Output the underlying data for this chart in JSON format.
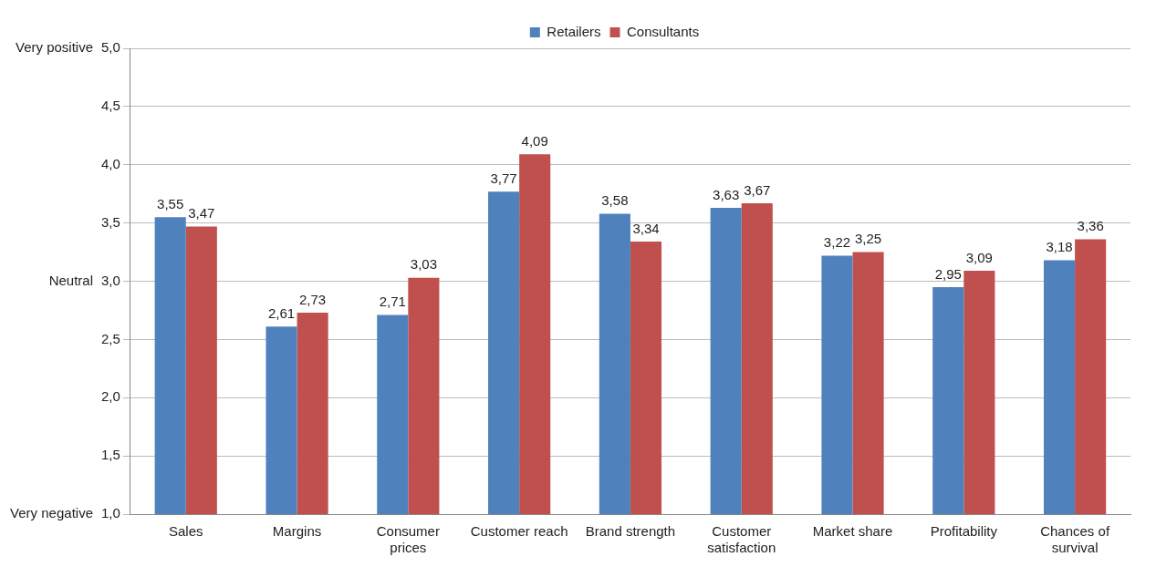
{
  "chart_data": {
    "type": "bar",
    "categories": [
      "Sales",
      "Margins",
      "Consumer\nprices",
      "Customer reach",
      "Brand strength",
      "Customer\nsatisfaction",
      "Market share",
      "Profitability",
      "Chances of\nsurvival"
    ],
    "series": [
      {
        "name": "Retailers",
        "color": "#4f81bd",
        "values": [
          3.55,
          2.61,
          2.71,
          3.77,
          3.58,
          3.63,
          3.22,
          2.95,
          3.18
        ],
        "value_labels": [
          "3,55",
          "2,61",
          "2,71",
          "3,77",
          "3,58",
          "3,63",
          "3,22",
          "2,95",
          "3,18"
        ]
      },
      {
        "name": "Consultants",
        "color": "#c0504d",
        "values": [
          3.47,
          2.73,
          3.03,
          4.09,
          3.34,
          3.67,
          3.25,
          3.09,
          3.36
        ],
        "value_labels": [
          "3,47",
          "2,73",
          "3,03",
          "4,09",
          "3,34",
          "3,67",
          "3,25",
          "3,09",
          "3,36"
        ]
      }
    ],
    "ylim": [
      1,
      5
    ],
    "yticks": [
      {
        "value": 1,
        "label": "1,0"
      },
      {
        "value": 1.5,
        "label": "1,5"
      },
      {
        "value": 2,
        "label": "2,0"
      },
      {
        "value": 2.5,
        "label": "2,5"
      },
      {
        "value": 3,
        "label": "3,0"
      },
      {
        "value": 3.5,
        "label": "3,5"
      },
      {
        "value": 4,
        "label": "4,0"
      },
      {
        "value": 4.5,
        "label": "4,5"
      },
      {
        "value": 5,
        "label": "5,0"
      }
    ],
    "annotations": [
      "Very positive",
      "Neutral",
      "Very negative"
    ],
    "grid": "y",
    "legend": "top"
  }
}
